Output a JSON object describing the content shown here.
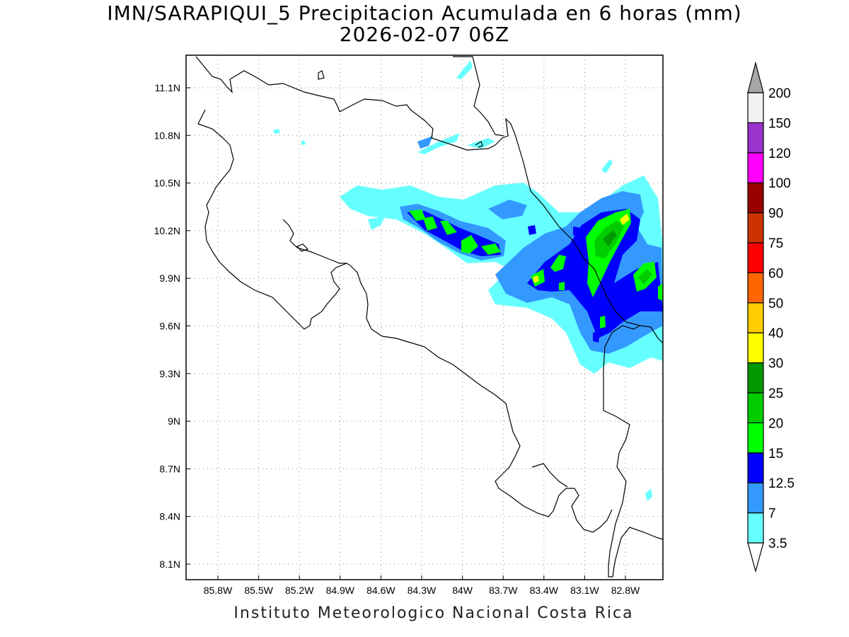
{
  "header": {
    "title": "IMN/SARAPIQUI_5 Precipitacion Acumulada en 6 horas (mm)",
    "date": "2026-02-07 06Z"
  },
  "footer": {
    "credit": "Instituto Meteorologico Nacional Costa Rica"
  },
  "map": {
    "lon_range": [
      -86.0,
      -82.6
    ],
    "lat_range": [
      8.0,
      11.3
    ],
    "lon_ticks": [
      "85.8W",
      "85.5W",
      "85.2W",
      "84.9W",
      "84.6W",
      "84.3W",
      "84W",
      "83.7W",
      "83.4W",
      "83.1W",
      "82.8W"
    ],
    "lat_ticks": [
      "11.1N",
      "10.8N",
      "10.5N",
      "10.2N",
      "9.9N",
      "9.6N",
      "9.3N",
      "9N",
      "8.7N",
      "8.4N",
      "8.1N"
    ],
    "grid": "dotted"
  },
  "colorbar": {
    "labels": [
      "3.5",
      "7",
      "12.5",
      "15",
      "20",
      "25",
      "30",
      "40",
      "50",
      "60",
      "75",
      "90",
      "100",
      "120",
      "150",
      "200"
    ],
    "colors": [
      "#66ffff",
      "#3399ff",
      "#0000ff",
      "#00ff00",
      "#00cc00",
      "#009900",
      "#ffff00",
      "#ffcc00",
      "#ff6600",
      "#ff0000",
      "#cc3300",
      "#990000",
      "#ff00ff",
      "#9933cc",
      "#f2f2f2",
      "#a6a6a6"
    ]
  }
}
